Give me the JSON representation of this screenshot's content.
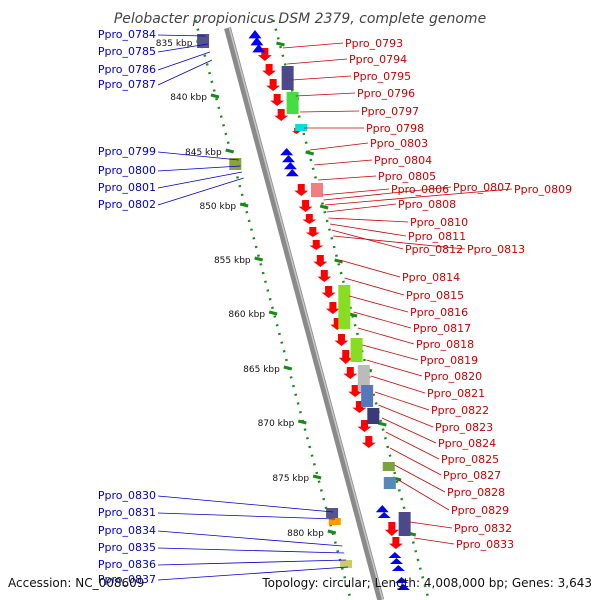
{
  "title": "Pelobacter propionicus DSM 2379, complete genome",
  "footer": {
    "accession": "Accession: NC_008609",
    "summary": "Topology: circular; Length: 4,008,000 bp; Genes: 3,643"
  },
  "colors": {
    "backbone": "#8a8a8a",
    "tick": "#1a8a1a",
    "forward_gene": "#ff0000",
    "reverse_gene": "#0000ff",
    "left_label": "#0000cc",
    "right_label": "#cc0000"
  },
  "ruler": [
    "835 kbp",
    "840 kbp",
    "845 kbp",
    "850 kbp",
    "855 kbp",
    "860 kbp",
    "865 kbp",
    "870 kbp",
    "875 kbp",
    "880 kbp"
  ],
  "left_labels": [
    "Ppro_0784",
    "Ppro_0785",
    "Ppro_0786",
    "Ppro_0787",
    "Ppro_0799",
    "Ppro_0800",
    "Ppro_0801",
    "Ppro_0802",
    "Ppro_0830",
    "Ppro_0831",
    "Ppro_0834",
    "Ppro_0835",
    "Ppro_0836",
    "Ppro_0837"
  ],
  "right_labels": [
    "Ppro_0793",
    "Ppro_0794",
    "Ppro_0795",
    "Ppro_0796",
    "Ppro_0797",
    "Ppro_0798",
    "Ppro_0803",
    "Ppro_0804",
    "Ppro_0805",
    "Ppro_0806",
    "Ppro_0807",
    "Ppro_0809",
    "Ppro_0808",
    "Ppro_0810",
    "Ppro_0811",
    "Ppro_0812",
    "Ppro_0813",
    "Ppro_0814",
    "Ppro_0815",
    "Ppro_0816",
    "Ppro_0817",
    "Ppro_0818",
    "Ppro_0819",
    "Ppro_0820",
    "Ppro_0821",
    "Ppro_0822",
    "Ppro_0823",
    "Ppro_0824",
    "Ppro_0825",
    "Ppro_0827",
    "Ppro_0828",
    "Ppro_0829",
    "Ppro_0832",
    "Ppro_0833"
  ]
}
